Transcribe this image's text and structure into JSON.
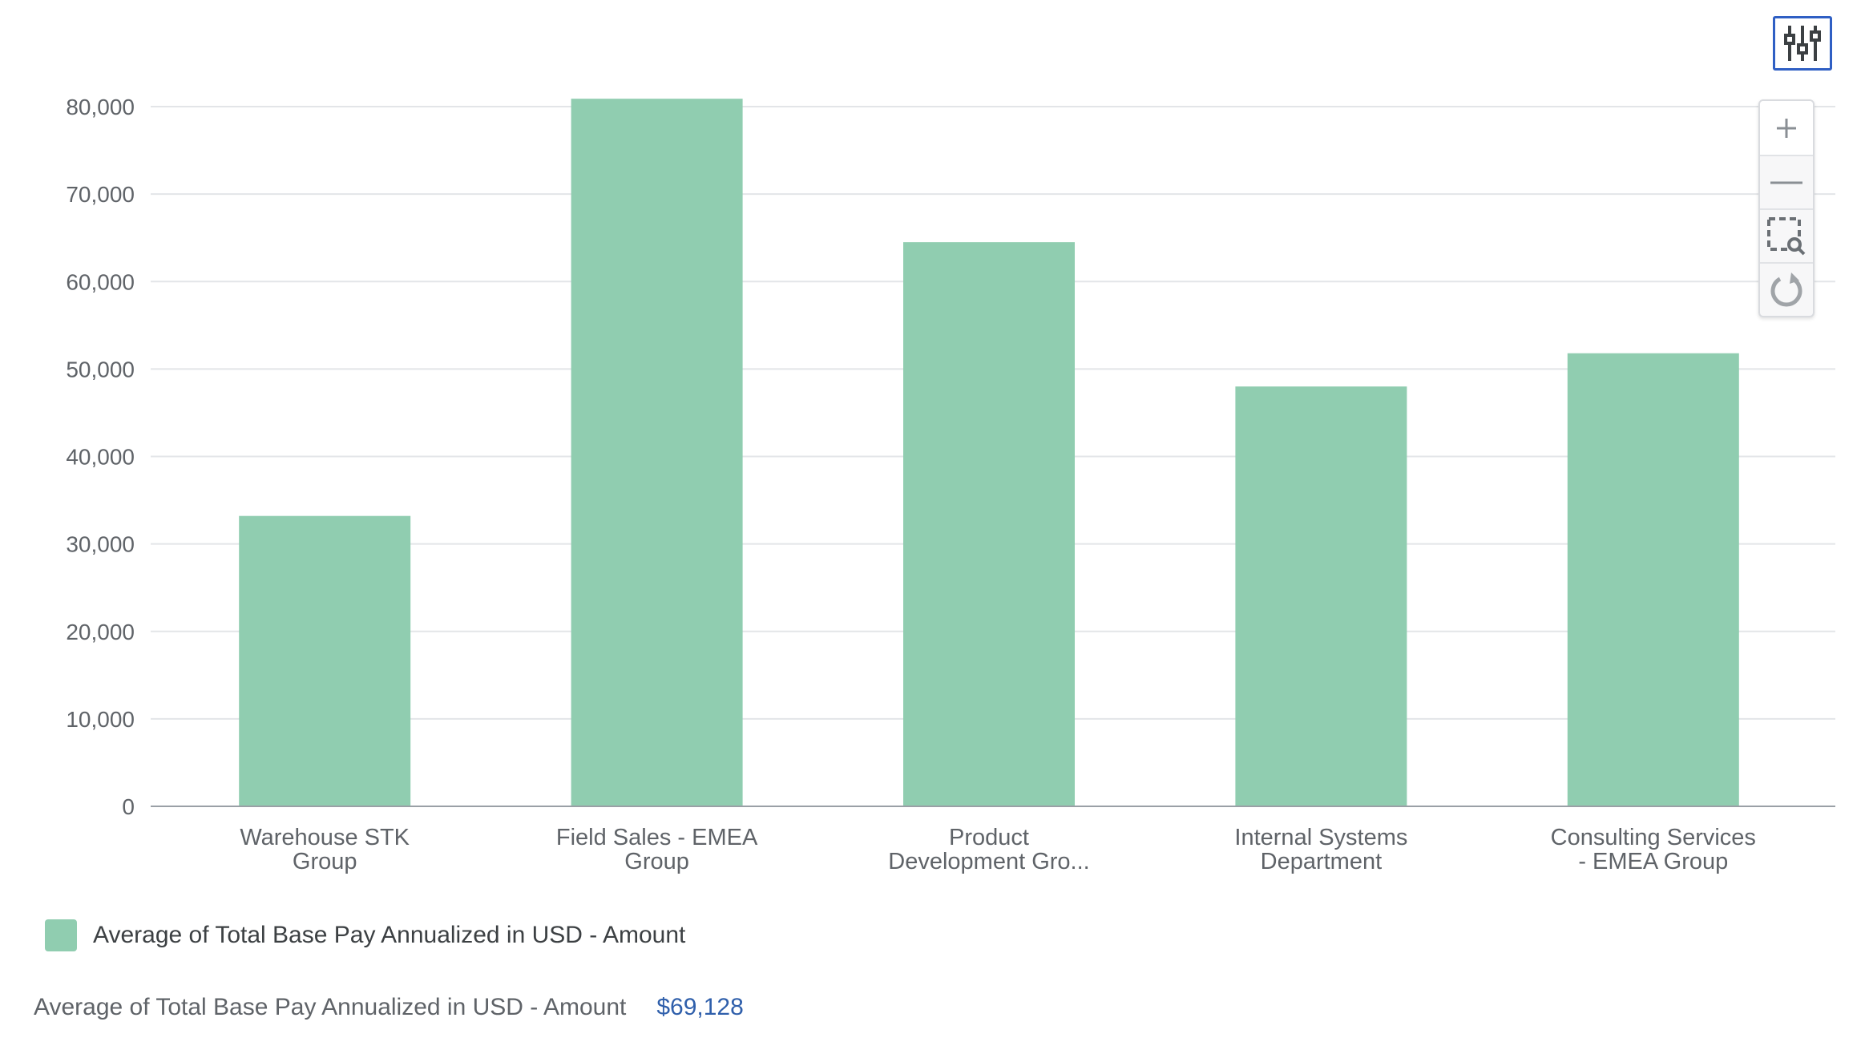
{
  "chart_data": {
    "type": "bar",
    "categories": [
      [
        "Warehouse STK",
        "Group"
      ],
      [
        "Field Sales - EMEA",
        "Group"
      ],
      [
        "Product",
        "Development Gro..."
      ],
      [
        "Internal Systems",
        "Department"
      ],
      [
        "Consulting Services",
        "- EMEA Group"
      ]
    ],
    "series": [
      {
        "name": "Average of Total Base Pay Annualized in USD - Amount",
        "values": [
          33200,
          80900,
          64500,
          48000,
          51800
        ],
        "color": "#90cdb0"
      }
    ],
    "ylim": [
      0,
      80000
    ],
    "yticks": [
      0,
      10000,
      20000,
      30000,
      40000,
      50000,
      60000,
      70000,
      80000
    ],
    "ytick_labels": [
      "0",
      "10,000",
      "20,000",
      "30,000",
      "40,000",
      "50,000",
      "60,000",
      "70,000",
      "80,000"
    ],
    "grid": true,
    "legend_position": "bottom-left",
    "title": "",
    "xlabel": "",
    "ylabel": ""
  },
  "legend": {
    "label": "Average of Total Base Pay Annualized in USD - Amount",
    "color": "#90cdb0"
  },
  "summary": {
    "label": "Average of Total Base Pay Annualized in USD - Amount",
    "value": "$69,128"
  },
  "toolbar": {
    "settings_icon": "chart-settings-icon",
    "zoom_in_icon": "plus-icon",
    "zoom_out_icon": "minus-icon",
    "zoom_select_icon": "zoom-select-icon",
    "reset_icon": "reset-icon"
  },
  "colors": {
    "accent": "#2f5fc4",
    "bar": "#90cdb0",
    "grid": "#e3e5e8",
    "axis": "#9aa0a6",
    "value_link": "#2f5fab"
  }
}
